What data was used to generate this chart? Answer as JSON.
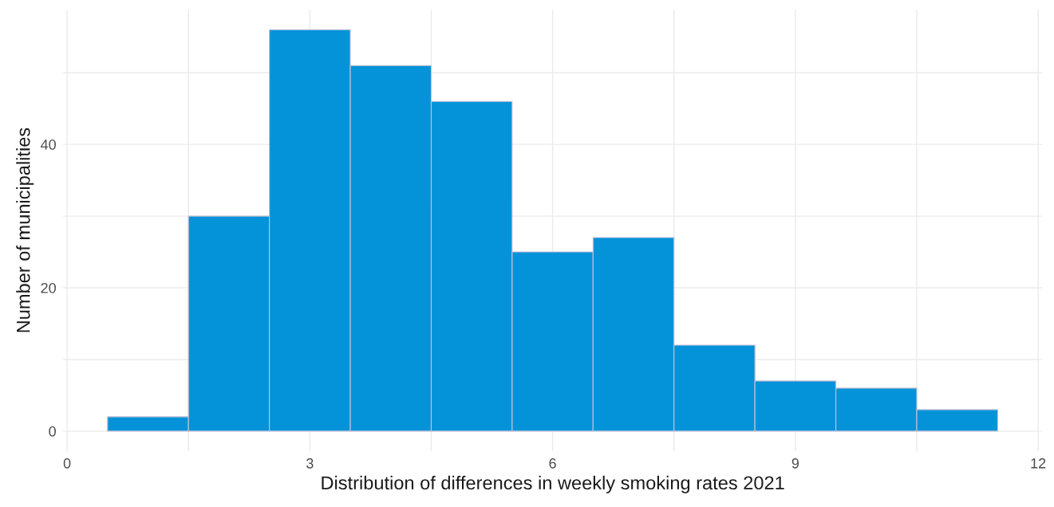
{
  "chart_data": {
    "type": "histogram",
    "xlabel": "Distribution of differences in weekly smoking rates 2021",
    "ylabel": "Number of municipalities",
    "bins": [
      0.5,
      1.5,
      2.5,
      3.5,
      4.5,
      5.5,
      6.5,
      7.5,
      8.5,
      9.5,
      10.5,
      11.5
    ],
    "values": [
      2,
      30,
      56,
      51,
      46,
      25,
      27,
      12,
      7,
      6,
      3
    ],
    "color": "#0493d9",
    "xlim": [
      -0.05,
      12.05
    ],
    "ylim": [
      -2.8,
      58.8
    ],
    "xticks": [
      0,
      {
        "value": 1.5,
        "label": null
      },
      3,
      {
        "value": 4.5,
        "label": null
      },
      6,
      {
        "value": 7.5,
        "label": null
      },
      9,
      {
        "value": 10.5,
        "label": null
      },
      12
    ],
    "yticks": [
      0,
      {
        "value": 10,
        "label": null
      },
      20,
      {
        "value": 30,
        "label": null
      },
      40,
      {
        "value": 50,
        "label": null
      }
    ],
    "grid": true
  }
}
